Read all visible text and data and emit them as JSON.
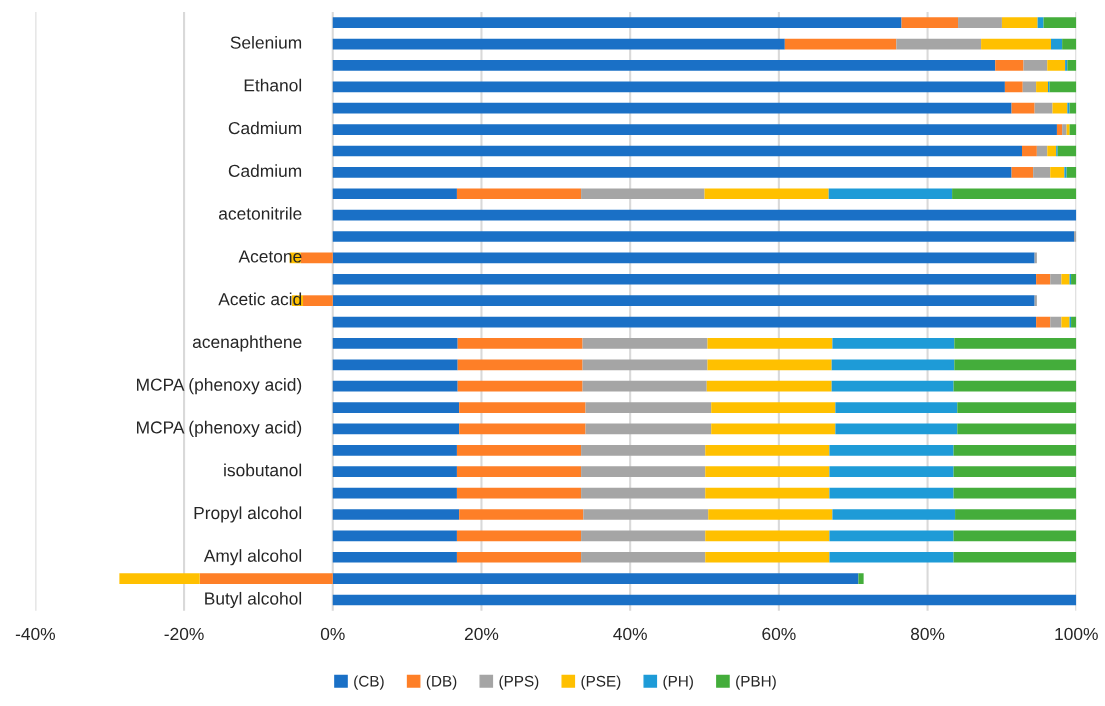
{
  "chart_data": {
    "type": "bar",
    "orientation": "horizontal",
    "stacked": true,
    "categories": [
      null,
      "Selenium",
      null,
      "Ethanol",
      null,
      "Cadmium",
      null,
      "Cadmium",
      null,
      "acetonitrile",
      null,
      "Acetone",
      null,
      "Acetic acid",
      null,
      "acenaphthene",
      null,
      "MCPA (phenoxy acid)",
      null,
      "MCPA (phenoxy acid)",
      null,
      "isobutanol",
      null,
      "Propyl alcohol",
      null,
      "Amyl alcohol",
      null,
      "Butyl alcohol"
    ],
    "series": [
      {
        "name": "(CB)",
        "color": "#1a70c6",
        "values": [
          76.5,
          60.8,
          89.1,
          90.4,
          91.3,
          97.4,
          92.7,
          91.3,
          16.7,
          100,
          99.7,
          94.4,
          94.6,
          94.4,
          94.6,
          16.8,
          16.8,
          16.8,
          17.0,
          17.0,
          16.7,
          16.7,
          16.7,
          17.0,
          16.7,
          16.7,
          70.7,
          100
        ]
      },
      {
        "name": "(DB)",
        "color": "#fe7f27",
        "values": [
          7.6,
          15,
          3.8,
          2.4,
          3.1,
          0.7,
          2.0,
          2.9,
          16.7,
          null,
          null,
          -4.3,
          1.9,
          -4.0,
          1.9,
          16.8,
          16.8,
          16.8,
          17.0,
          17.0,
          16.7,
          16.7,
          16.7,
          16.7,
          16.7,
          16.7,
          -17.9,
          null
        ]
      },
      {
        "name": "(PPS)",
        "color": "#a5a5a5",
        "values": [
          5.9,
          11.4,
          3.2,
          1.8,
          2.4,
          0.6,
          1.4,
          2.3,
          16.6,
          null,
          0.3,
          0.3,
          1.5,
          0.3,
          1.5,
          16.8,
          16.8,
          16.7,
          16.9,
          16.9,
          16.7,
          16.7,
          16.7,
          16.8,
          16.7,
          16.7,
          null,
          null
        ]
      },
      {
        "name": "(PSE)",
        "color": "#ffc000",
        "values": [
          4.8,
          9.4,
          2.4,
          1.6,
          2.0,
          0.4,
          1.2,
          1.9,
          16.7,
          null,
          null,
          -1.5,
          1.1,
          -1.5,
          1.1,
          16.8,
          16.7,
          16.8,
          16.7,
          16.7,
          16.7,
          16.7,
          16.7,
          16.7,
          16.7,
          16.7,
          -10.8,
          null
        ]
      },
      {
        "name": "(PH)",
        "color": "#1e9bd7",
        "values": [
          0.8,
          1.5,
          0.3,
          0.2,
          0.3,
          null,
          0.2,
          0.3,
          16.6,
          null,
          null,
          null,
          0.2,
          null,
          0.2,
          16.4,
          16.5,
          16.4,
          16.4,
          16.4,
          16.7,
          16.7,
          16.7,
          16.5,
          16.7,
          16.7,
          null,
          null
        ]
      },
      {
        "name": "(PBH)",
        "color": "#44ad3b",
        "values": [
          4.4,
          1.9,
          1.2,
          3.6,
          0.9,
          0.9,
          2.5,
          1.3,
          16.7,
          null,
          null,
          null,
          0.7,
          null,
          0.7,
          16.4,
          16.4,
          16.5,
          16.0,
          16.0,
          16.5,
          16.5,
          16.5,
          16.3,
          16.5,
          16.5,
          0.7,
          null
        ]
      }
    ],
    "xlim": [
      -40,
      100
    ],
    "xticks": [
      {
        "value": -40,
        "label": "-40%"
      },
      {
        "value": -20,
        "label": "-20%"
      },
      {
        "value": 0,
        "label": "0%"
      },
      {
        "value": 20,
        "label": "20%"
      },
      {
        "value": 40,
        "label": "40%"
      },
      {
        "value": 60,
        "label": "60%"
      },
      {
        "value": 80,
        "label": "80%"
      },
      {
        "value": 100,
        "label": "100%"
      }
    ],
    "grid": "x",
    "legend": "bottom"
  }
}
